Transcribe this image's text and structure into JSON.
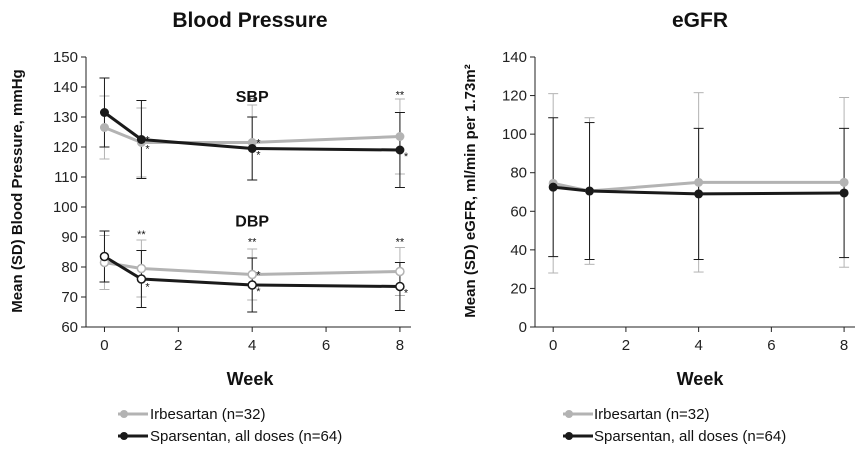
{
  "colors": {
    "irbesartan": "#b3b3b3",
    "sparsentan": "#1a1a1a",
    "axis": "#222222"
  },
  "legend": [
    {
      "label": "Irbesartan (n=32)",
      "color": "#b3b3b3"
    },
    {
      "label": "Sparsentan, all doses (n=64)",
      "color": "#1a1a1a"
    }
  ],
  "chart_data": [
    {
      "type": "line",
      "title": "Blood Pressure",
      "xlabel": "Week",
      "ylabel": "Mean (SD) Blood Pressure, mmHg",
      "xlim": [
        -0.5,
        8.3
      ],
      "ylim": [
        60,
        150
      ],
      "xticks": [
        0,
        2,
        4,
        6,
        8
      ],
      "yticks": [
        60,
        70,
        80,
        90,
        100,
        110,
        120,
        130,
        140,
        150
      ],
      "grid": false,
      "legend_position": "bottom",
      "group_labels": [
        {
          "text": "SBP",
          "x": 4,
          "y": 135
        },
        {
          "text": "DBP",
          "x": 4,
          "y": 93.5
        }
      ],
      "series": [
        {
          "name": "Irbesartan (n=32)",
          "group": "SBP",
          "color": "#b3b3b3",
          "marker": "filled",
          "x": [
            0,
            1,
            4,
            8
          ],
          "y": [
            126.5,
            121.5,
            121.5,
            123.5
          ],
          "sd": [
            10.5,
            11.5,
            12.5,
            12.5
          ]
        },
        {
          "name": "Sparsentan, all doses (n=64)",
          "group": "SBP",
          "color": "#1a1a1a",
          "marker": "filled",
          "x": [
            0,
            1,
            4,
            8
          ],
          "y": [
            131.5,
            122.5,
            119.5,
            119.0
          ],
          "sd": [
            11.5,
            13.0,
            10.5,
            12.5
          ]
        },
        {
          "name": "Irbesartan (n=32)",
          "group": "DBP",
          "color": "#b3b3b3",
          "marker": "open",
          "x": [
            0,
            1,
            4,
            8
          ],
          "y": [
            81.5,
            79.5,
            77.5,
            78.5
          ],
          "sd": [
            9.0,
            9.5,
            8.5,
            8.0
          ]
        },
        {
          "name": "Sparsentan, all doses (n=64)",
          "group": "DBP",
          "color": "#1a1a1a",
          "marker": "open",
          "x": [
            0,
            1,
            4,
            8
          ],
          "y": [
            83.5,
            76.0,
            74.0,
            73.5
          ],
          "sd": [
            8.5,
            9.5,
            9.0,
            8.0
          ]
        }
      ],
      "annotations": [
        {
          "text": "*",
          "x": 1,
          "y": 122.5,
          "side": "right"
        },
        {
          "text": "*",
          "x": 1,
          "y": 119.5,
          "side": "right"
        },
        {
          "text": "**",
          "x": 4,
          "y": 135.5,
          "side": "center"
        },
        {
          "text": "*",
          "x": 4,
          "y": 121.5,
          "side": "right"
        },
        {
          "text": "*",
          "x": 4,
          "y": 117.5,
          "side": "right"
        },
        {
          "text": "**",
          "x": 8,
          "y": 137.5,
          "side": "center"
        },
        {
          "text": "*",
          "x": 8,
          "y": 117.0,
          "side": "right"
        },
        {
          "text": "**",
          "x": 1,
          "y": 91.0,
          "side": "center"
        },
        {
          "text": "*",
          "x": 1,
          "y": 73.5,
          "side": "right"
        },
        {
          "text": "**",
          "x": 4,
          "y": 88.5,
          "side": "center"
        },
        {
          "text": "*",
          "x": 4,
          "y": 77.5,
          "side": "right"
        },
        {
          "text": "*",
          "x": 4,
          "y": 72.0,
          "side": "right"
        },
        {
          "text": "**",
          "x": 8,
          "y": 88.5,
          "side": "center"
        },
        {
          "text": "*",
          "x": 8,
          "y": 71.5,
          "side": "right"
        }
      ]
    },
    {
      "type": "line",
      "title": "eGFR",
      "xlabel": "Week",
      "ylabel": "Mean (SD) eGFR, ml/min per 1.73m²",
      "xlim": [
        -0.5,
        8.3
      ],
      "ylim": [
        0,
        140
      ],
      "xticks": [
        0,
        2,
        4,
        6,
        8
      ],
      "yticks": [
        0,
        20,
        40,
        60,
        80,
        100,
        120,
        140
      ],
      "grid": false,
      "legend_position": "bottom",
      "group_labels": [],
      "series": [
        {
          "name": "Irbesartan (n=32)",
          "color": "#b3b3b3",
          "marker": "none",
          "x": [
            0,
            1,
            4,
            8
          ],
          "y": [
            74.5,
            70.5,
            75.0,
            75.0
          ],
          "sd": [
            46.5,
            38.0,
            46.5,
            44.0
          ]
        },
        {
          "name": "Sparsentan, all doses (n=64)",
          "color": "#1a1a1a",
          "marker": "none",
          "x": [
            0,
            1,
            4,
            8
          ],
          "y": [
            72.5,
            70.5,
            69.0,
            69.5
          ],
          "sd": [
            36.0,
            35.5,
            34.0,
            33.5
          ]
        }
      ],
      "annotations": []
    }
  ]
}
